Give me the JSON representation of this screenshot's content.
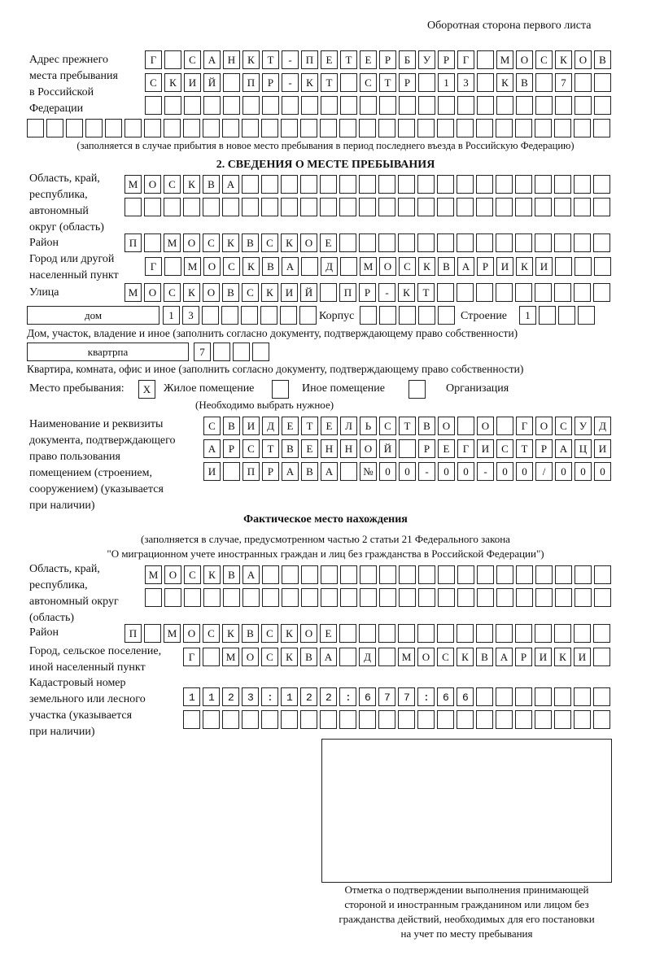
{
  "header": {
    "page_side": "Оборотная сторона первого листа"
  },
  "previous_address": {
    "label": [
      "Адрес прежнего",
      "места пребывания",
      "в Российской",
      "Федерации"
    ],
    "rows": [
      "Г САНКТ-ПЕТЕРБУРГ МОСКОВ",
      "СКИЙ ПР-КТ СТР 13 КВ 7  ",
      "                        ",
      "                              "
    ],
    "note": "(заполняется в случае прибытия в новое место пребывания в период последнего въезда в Российскую Федерацию)"
  },
  "section2": {
    "title": "2. СВЕДЕНИЯ О МЕСТЕ ПРЕБЫВАНИЯ",
    "region_label": [
      "Область, край,",
      "республика,",
      "автономный",
      "округ (область)"
    ],
    "region_rows": [
      "МОСКВА                   ",
      "                         "
    ],
    "district_label": "Район",
    "district_row": "П МОСКВСКОЕ              ",
    "city_label": [
      "Город или другой",
      "населенный пункт"
    ],
    "city_row": "Г МОСКВА Д МОСКВАРИКИ   ",
    "street_label": "Улица",
    "street_row": "МОСКОВСКИЙ ПР-КТ         ",
    "house_type": "дом",
    "house_row": "13      ",
    "corpus_label": "Корпус",
    "corpus_row": "     ",
    "building_label": "Строение",
    "building_row": "1   ",
    "house_note": "Дом, участок, владение и иное (заполнить согласно документу, подтверждающему право собственности)",
    "flat_type": "квартрпа",
    "flat_row": "7   ",
    "flat_note": "Квартира, комната, офис и иное (заполнить согласно документу, подтверждающему право собственности)",
    "stay_place_label": "Место пребывания:",
    "stay_options": [
      {
        "label": "Жилое помещение",
        "mark": "X",
        "checked": true
      },
      {
        "label": "Иное помещение",
        "mark": "",
        "checked": false
      },
      {
        "label": "Организация",
        "mark": "",
        "checked": false
      }
    ],
    "stay_hint": "(Необходимо выбрать нужное)",
    "doc_label": [
      "Наименование и реквизиты",
      "документа, подтверждающего",
      "право пользования",
      "помещением (строением,",
      "сооружением) (указывается",
      "при наличии)"
    ],
    "doc_rows": [
      "СВИДЕТЕЛЬСТВО О ГОСУД",
      "АРСТВЕННОЙ РЕГИСТРАЦИ",
      "И ПРАВА №00-00-00/000"
    ]
  },
  "actual": {
    "title": "Фактическое место нахождения",
    "note": [
      "(заполняется в случае, предусмотренном частью 2 статьи 21 Федерального закона",
      "\"О миграционном учете иностранных граждан и лиц без гражданства в Российской Федерации\")"
    ],
    "region_label": [
      "Область, край,",
      "республика,",
      "автономный округ",
      "(область)"
    ],
    "region_rows": [
      "МОСКВА                  ",
      "                        "
    ],
    "district_label": "Район",
    "district_row": "П МОСКВСКОЕ              ",
    "city_label": [
      "Город, сельское поселение,",
      "иной населенный пункт"
    ],
    "city_row": "Г МОСКВА Д МОСКВАРИКИ ",
    "cadastral_label": [
      "Кадастровый номер",
      "земельного или лесного",
      "участка (указывается",
      "при наличии)"
    ],
    "cadastral_rows": [
      "1123:122:677:66       ",
      "                      "
    ]
  },
  "confirmation": {
    "caption": [
      "Отметка о подтверждении выполнения принимающей",
      "стороной и иностранным гражданином или лицом без",
      "гражданства действий, необходимых для его постановки",
      "на учет по месту пребывания"
    ]
  }
}
